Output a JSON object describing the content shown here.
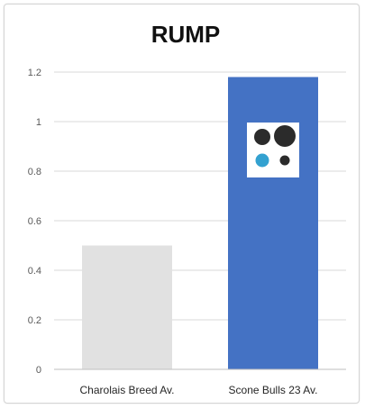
{
  "chart_data": {
    "type": "bar",
    "title": "RUMP",
    "xlabel": "",
    "ylabel": "",
    "categories": [
      "Charolais Breed Av.",
      "Scone Bulls 23 Av."
    ],
    "values": [
      0.5,
      1.18
    ],
    "ylim": [
      0,
      1.2
    ],
    "yticks": [
      0,
      0.2,
      0.4,
      0.6,
      0.8,
      1,
      1.2
    ],
    "grid": true,
    "legend": "none",
    "colors": {
      "bars": [
        "#e1e1e1",
        "#4472c4"
      ],
      "grid": "#d9d9d9",
      "axis": "#bfbfbf"
    }
  },
  "logo": {
    "name": "four-dots-logo",
    "colors": {
      "dark": "#2b2b2b",
      "accent": "#33a1d0",
      "background": "#ffffff"
    }
  }
}
